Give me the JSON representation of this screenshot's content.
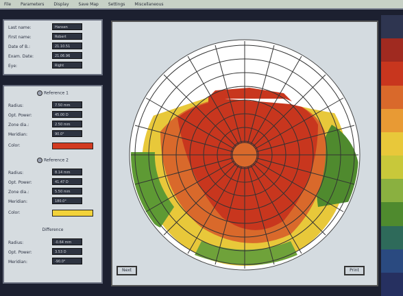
{
  "menu": [
    "File",
    "Parameters",
    "Display",
    "Save Map",
    "Settings",
    "Miscellaneous"
  ],
  "patient": {
    "fields": [
      {
        "label": "Last name:",
        "value": "Hansen"
      },
      {
        "label": "First name:",
        "value": "Robert"
      },
      {
        "label": "Date of B.:",
        "value": "21.10.51"
      },
      {
        "label": "Exam. Date:",
        "value": "21.06.96"
      },
      {
        "label": "Eye:",
        "value": "Right"
      }
    ]
  },
  "reference1": {
    "title": "Reference 1",
    "fields": [
      {
        "label": "Radius:",
        "value": "7.50 mm"
      },
      {
        "label": "Opt. Power:",
        "value": "45.00 D"
      },
      {
        "label": "Zone dia.:",
        "value": "2.50 mm"
      },
      {
        "label": "Meridian:",
        "value": "90.0°"
      }
    ],
    "color_label": "Color:",
    "color": "#d23a20"
  },
  "reference2": {
    "title": "Reference 2",
    "fields": [
      {
        "label": "Radius:",
        "value": "8.14 mm"
      },
      {
        "label": "Opt. Power:",
        "value": "41.47 D"
      },
      {
        "label": "Zone dia.:",
        "value": "5.50 mm"
      },
      {
        "label": "Meridian:",
        "value": "180.0°"
      }
    ],
    "color_label": "Color:",
    "color": "#f2d23a"
  },
  "difference": {
    "title": "Difference",
    "fields": [
      {
        "label": "Radius:",
        "value": "-0.64 mm"
      },
      {
        "label": "Opt. Power:",
        "value": "3.53 D"
      },
      {
        "label": "Meridian:",
        "value": "-90.0°"
      }
    ]
  },
  "map": {
    "buttons": {
      "left": "Next",
      "right": "Print"
    }
  },
  "colors": {
    "red": "#c8361e",
    "orange": "#d9692b",
    "yellow": "#e8c83a",
    "green": "#4f8a2e",
    "white": "#ffffff"
  }
}
